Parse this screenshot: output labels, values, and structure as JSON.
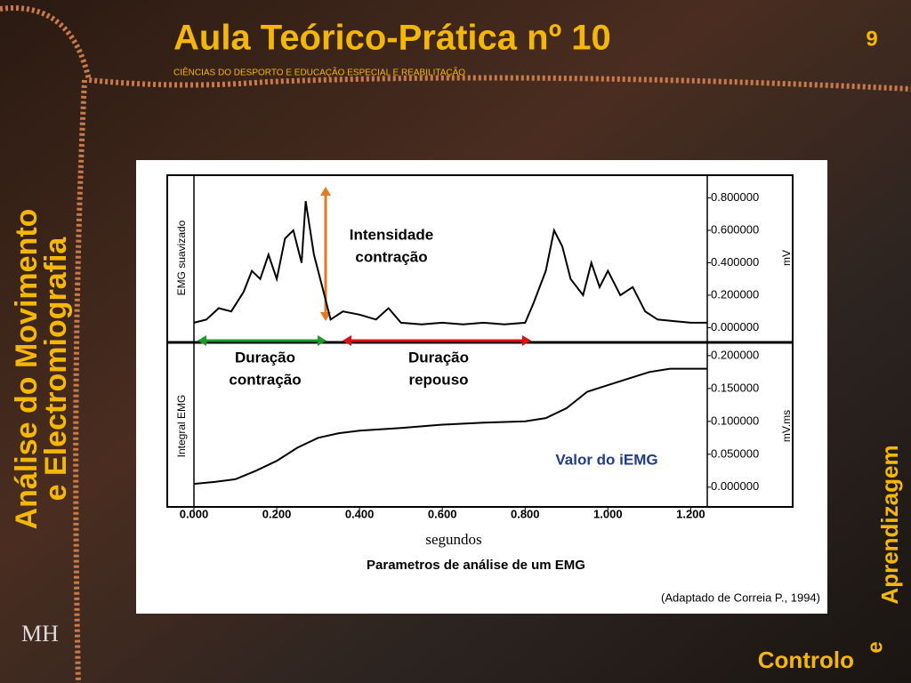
{
  "slide": {
    "title": "Aula Teórico-Prática nº 10",
    "subtitle": "CIÊNCIAS DO DESPORTO E EDUCAÇÃO ESPECIAL E REABILITAÇÃO",
    "page_number": "9",
    "side_title": [
      "Análise do Movimento",
      "e Electromiografia"
    ],
    "corner": [
      "Aprendizagem",
      "e",
      "Controlo"
    ],
    "logo": "MH",
    "figure_caption": "Parametros de análise de um EMG",
    "source": "(Adaptado de Correia P., 1994)"
  },
  "chart_data": [
    {
      "type": "line",
      "ylabel": "EMG suavizado",
      "y2label": "mV",
      "color": "#000000",
      "xlim": [
        0,
        1.24
      ],
      "ylim": [
        -0.08,
        0.94
      ],
      "yticks": [
        {
          "value": 0,
          "label": "0.000000"
        },
        {
          "value": 0.2,
          "label": "0.200000"
        },
        {
          "value": 0.4,
          "label": "0.400000"
        },
        {
          "value": 0.6,
          "label": "0.600000"
        },
        {
          "value": 0.8,
          "label": "0.800000"
        }
      ],
      "x": [
        0,
        0.03,
        0.06,
        0.09,
        0.12,
        0.14,
        0.16,
        0.18,
        0.2,
        0.22,
        0.24,
        0.26,
        0.27,
        0.29,
        0.31,
        0.33,
        0.36,
        0.4,
        0.44,
        0.47,
        0.5,
        0.55,
        0.6,
        0.65,
        0.7,
        0.75,
        0.8,
        0.82,
        0.85,
        0.87,
        0.89,
        0.91,
        0.94,
        0.96,
        0.98,
        1.0,
        1.03,
        1.06,
        1.09,
        1.12,
        1.16,
        1.2,
        1.24
      ],
      "values": [
        0.03,
        0.05,
        0.12,
        0.1,
        0.22,
        0.35,
        0.3,
        0.45,
        0.3,
        0.55,
        0.6,
        0.4,
        0.78,
        0.45,
        0.25,
        0.05,
        0.1,
        0.08,
        0.05,
        0.12,
        0.03,
        0.02,
        0.03,
        0.02,
        0.03,
        0.02,
        0.03,
        0.15,
        0.35,
        0.6,
        0.5,
        0.3,
        0.2,
        0.4,
        0.25,
        0.35,
        0.2,
        0.25,
        0.1,
        0.05,
        0.04,
        0.03,
        0.03
      ],
      "annotations": [
        [
          "Intensidade",
          "contração"
        ],
        [
          "Duração",
          "contração"
        ],
        [
          "Duração",
          "repouso"
        ]
      ]
    },
    {
      "type": "line",
      "ylabel": "Integral EMG",
      "y2label": "mV.ms",
      "xlabel": "segundos",
      "color": "#000000",
      "xlim": [
        0,
        1.24
      ],
      "ylim": [
        -0.03,
        0.216
      ],
      "xticks": [
        {
          "value": 0,
          "label": "0.000"
        },
        {
          "value": 0.2,
          "label": "0.200"
        },
        {
          "value": 0.4,
          "label": "0.400"
        },
        {
          "value": 0.6,
          "label": "0.600"
        },
        {
          "value": 0.8,
          "label": "0.800"
        },
        {
          "value": 1,
          "label": "1.000"
        },
        {
          "value": 1.2,
          "label": "1.200"
        }
      ],
      "yticks": [
        {
          "value": 0,
          "label": "0.000000"
        },
        {
          "value": 0.05,
          "label": "0.050000"
        },
        {
          "value": 0.1,
          "label": "0.100000"
        },
        {
          "value": 0.15,
          "label": "0.150000"
        },
        {
          "value": 0.2,
          "label": "0.200000"
        }
      ],
      "x": [
        0,
        0.05,
        0.1,
        0.15,
        0.2,
        0.25,
        0.3,
        0.35,
        0.4,
        0.5,
        0.6,
        0.7,
        0.8,
        0.85,
        0.9,
        0.95,
        1.0,
        1.05,
        1.1,
        1.15,
        1.24
      ],
      "values": [
        0.005,
        0.008,
        0.012,
        0.025,
        0.04,
        0.06,
        0.075,
        0.082,
        0.086,
        0.09,
        0.095,
        0.098,
        0.1,
        0.105,
        0.12,
        0.145,
        0.155,
        0.165,
        0.175,
        0.18,
        0.18
      ],
      "annotations": [
        [
          "Valor do iEMG"
        ]
      ]
    }
  ]
}
